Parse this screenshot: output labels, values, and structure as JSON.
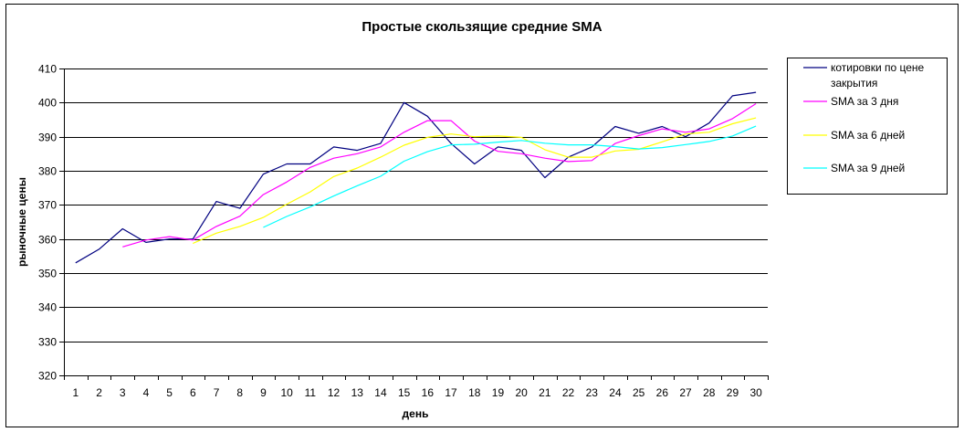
{
  "chart_data": {
    "type": "line",
    "title": "Простые скользящие средние SMA",
    "xlabel": "день",
    "ylabel": "рыночные цены",
    "categories": [
      "1",
      "2",
      "3",
      "4",
      "5",
      "6",
      "7",
      "8",
      "9",
      "10",
      "11",
      "12",
      "13",
      "14",
      "15",
      "16",
      "17",
      "18",
      "19",
      "20",
      "21",
      "22",
      "23",
      "24",
      "25",
      "26",
      "27",
      "28",
      "29",
      "30"
    ],
    "yticks": [
      "320",
      "330",
      "340",
      "350",
      "360",
      "370",
      "380",
      "390",
      "400",
      "410"
    ],
    "ylim": [
      320,
      410
    ],
    "grid": "horizontal major gridlines",
    "legend_position": "right",
    "series": [
      {
        "name": "котировки по цене закрытия",
        "legend_lines": [
          "котировки по цене",
          "закрытия"
        ],
        "color": "#000080",
        "values": [
          353,
          357,
          363,
          359,
          360,
          360,
          371,
          369,
          379,
          382,
          382,
          387,
          386,
          388,
          400,
          396,
          388,
          382,
          387,
          386,
          378,
          384,
          387,
          393,
          391,
          393,
          390,
          394,
          402,
          403
        ]
      },
      {
        "name": "SMA за 3 дня",
        "legend_lines": [
          "SMA за 3 дня"
        ],
        "color": "#ff00ff",
        "values": [
          null,
          null,
          357.7,
          359.7,
          360.7,
          359.7,
          363.7,
          366.7,
          373,
          376.7,
          381,
          383.7,
          385,
          387,
          391.3,
          394.7,
          394.7,
          388.7,
          385.7,
          385,
          383.7,
          382.7,
          383,
          388,
          390.3,
          392.3,
          391.3,
          392.3,
          395.3,
          399.7
        ]
      },
      {
        "name": "SMA за 6 дней",
        "legend_lines": [
          "SMA за 6 дней"
        ],
        "color": "#ffff00",
        "values": [
          null,
          null,
          null,
          null,
          null,
          358.7,
          361.7,
          363.7,
          366.3,
          370.2,
          373.8,
          378.3,
          380.8,
          384,
          387.5,
          389.8,
          390.8,
          390,
          390.2,
          389.8,
          386.2,
          384,
          384,
          385.8,
          386.3,
          388.5,
          390.8,
          391.3,
          393.8,
          395.5
        ]
      },
      {
        "name": "SMA за 9 дней",
        "legend_lines": [
          "SMA за 9 дней"
        ],
        "color": "#00ffff",
        "values": [
          null,
          null,
          null,
          null,
          null,
          null,
          null,
          null,
          363.4,
          366.6,
          369.4,
          372.6,
          375.6,
          378.4,
          382.8,
          385.6,
          387.6,
          387.8,
          388.4,
          388.9,
          388.1,
          387.6,
          387.6,
          387.1,
          386.4,
          386.8,
          387.7,
          388.6,
          390.2,
          393.1
        ]
      }
    ]
  }
}
